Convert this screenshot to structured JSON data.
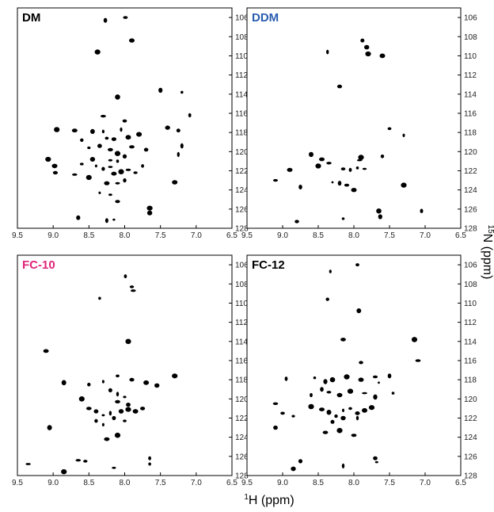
{
  "figure": {
    "xlabel_sup": "1",
    "xlabel_main": "H (ppm)",
    "ylabel_sup": "15",
    "ylabel_main": "N (ppm)"
  },
  "chart_data": [
    {
      "type": "scatter",
      "title": "DM",
      "title_color": "#000000",
      "xlim": [
        9.5,
        6.5
      ],
      "ylim": [
        128,
        105
      ],
      "x_ticks": [
        "9.5",
        "9.0",
        "8.5",
        "8.0",
        "7.5",
        "7.0",
        "6.5"
      ],
      "y_ticks": [
        "106",
        "108",
        "110",
        "112",
        "114",
        "116",
        "118",
        "120",
        "122",
        "124",
        "126",
        "128"
      ],
      "peaks": [
        [
          8.27,
          106.3
        ],
        [
          7.99,
          106.0
        ],
        [
          7.9,
          108.4
        ],
        [
          8.38,
          109.6
        ],
        [
          8.1,
          114.3
        ],
        [
          7.5,
          113.6
        ],
        [
          7.2,
          113.8
        ],
        [
          7.09,
          116.2
        ],
        [
          8.0,
          116.8
        ],
        [
          8.3,
          116.3
        ],
        [
          8.95,
          117.7
        ],
        [
          8.7,
          117.8
        ],
        [
          8.45,
          117.9
        ],
        [
          8.6,
          118.8
        ],
        [
          8.3,
          117.9
        ],
        [
          8.25,
          118.6
        ],
        [
          8.15,
          118.7
        ],
        [
          7.95,
          118.5
        ],
        [
          7.8,
          118.2
        ],
        [
          7.4,
          117.5
        ],
        [
          7.25,
          117.8
        ],
        [
          8.05,
          117.7
        ],
        [
          8.5,
          119.6
        ],
        [
          8.35,
          119.4
        ],
        [
          8.2,
          119.8
        ],
        [
          8.1,
          120.2
        ],
        [
          7.9,
          119.5
        ],
        [
          7.7,
          119.8
        ],
        [
          7.2,
          119.4
        ],
        [
          7.25,
          120.3
        ],
        [
          8.0,
          120.5
        ],
        [
          8.45,
          120.8
        ],
        [
          9.07,
          120.8
        ],
        [
          8.98,
          121.5
        ],
        [
          8.97,
          122.2
        ],
        [
          8.6,
          121.3
        ],
        [
          8.4,
          121.5
        ],
        [
          8.3,
          121.8
        ],
        [
          8.2,
          121.6
        ],
        [
          8.15,
          122.3
        ],
        [
          8.05,
          122.1
        ],
        [
          7.95,
          121.9
        ],
        [
          7.85,
          122.2
        ],
        [
          7.75,
          121.5
        ],
        [
          8.1,
          121.0
        ],
        [
          8.2,
          120.9
        ],
        [
          8.7,
          122.4
        ],
        [
          8.5,
          122.7
        ],
        [
          8.25,
          123.3
        ],
        [
          8.1,
          123.3
        ],
        [
          8.0,
          123.0
        ],
        [
          8.35,
          124.3
        ],
        [
          8.2,
          124.5
        ],
        [
          8.1,
          125.2
        ],
        [
          7.3,
          123.2
        ],
        [
          7.65,
          125.9
        ],
        [
          7.65,
          126.4
        ],
        [
          8.65,
          126.9
        ],
        [
          8.15,
          127.1
        ],
        [
          8.25,
          127.2
        ]
      ]
    },
    {
      "type": "scatter",
      "title": "DDM",
      "title_color": "#2a5db0",
      "xlim": [
        9.5,
        6.5
      ],
      "ylim": [
        128,
        105
      ],
      "x_ticks": [
        "9.5",
        "9.0",
        "8.5",
        "8.0",
        "7.5",
        "7.0",
        "6.5"
      ],
      "y_ticks": [
        "106",
        "108",
        "110",
        "112",
        "114",
        "116",
        "118",
        "120",
        "122",
        "124",
        "126",
        "128"
      ],
      "peaks": [
        [
          8.37,
          109.6
        ],
        [
          7.88,
          108.4
        ],
        [
          7.82,
          109.1
        ],
        [
          7.8,
          109.8
        ],
        [
          7.6,
          110.0
        ],
        [
          8.2,
          113.2
        ],
        [
          7.5,
          117.6
        ],
        [
          7.3,
          118.3
        ],
        [
          7.6,
          120.5
        ],
        [
          8.6,
          120.3
        ],
        [
          8.45,
          120.8
        ],
        [
          7.9,
          120.6
        ],
        [
          8.35,
          121.2
        ],
        [
          8.15,
          121.8
        ],
        [
          8.05,
          121.9
        ],
        [
          7.95,
          121.7
        ],
        [
          7.85,
          121.8
        ],
        [
          7.92,
          120.9
        ],
        [
          8.5,
          121.5
        ],
        [
          8.9,
          121.9
        ],
        [
          9.1,
          123.0
        ],
        [
          8.75,
          123.7
        ],
        [
          8.3,
          123.2
        ],
        [
          8.2,
          123.3
        ],
        [
          8.1,
          123.5
        ],
        [
          8.0,
          124.0
        ],
        [
          7.3,
          123.5
        ],
        [
          7.65,
          126.2
        ],
        [
          7.63,
          126.8
        ],
        [
          8.15,
          127.0
        ],
        [
          7.05,
          126.2
        ],
        [
          8.8,
          127.3
        ]
      ]
    },
    {
      "type": "scatter",
      "title": "FC-10",
      "title_color": "#e0257a",
      "xlim": [
        9.5,
        6.5
      ],
      "ylim": [
        128,
        105
      ],
      "x_ticks": [
        "9.5",
        "9.0",
        "8.5",
        "8.0",
        "7.5",
        "7.0",
        "6.5"
      ],
      "y_ticks": [
        "106",
        "108",
        "110",
        "112",
        "114",
        "116",
        "118",
        "120",
        "122",
        "124",
        "126",
        "128"
      ],
      "peaks": [
        [
          8.35,
          109.5
        ],
        [
          7.99,
          107.2
        ],
        [
          7.9,
          108.3
        ],
        [
          7.88,
          108.7
        ],
        [
          7.95,
          114.0
        ],
        [
          9.1,
          115.0
        ],
        [
          8.85,
          118.3
        ],
        [
          8.5,
          118.5
        ],
        [
          8.3,
          118.2
        ],
        [
          8.1,
          117.6
        ],
        [
          7.9,
          118.0
        ],
        [
          7.7,
          118.3
        ],
        [
          7.3,
          117.6
        ],
        [
          7.55,
          118.6
        ],
        [
          8.2,
          119.1
        ],
        [
          8.1,
          119.5
        ],
        [
          8.0,
          119.8
        ],
        [
          7.95,
          120.6
        ],
        [
          8.1,
          120.3
        ],
        [
          8.6,
          120.0
        ],
        [
          8.5,
          121.0
        ],
        [
          8.4,
          121.3
        ],
        [
          8.3,
          121.7
        ],
        [
          8.2,
          121.5
        ],
        [
          8.15,
          122.0
        ],
        [
          8.05,
          121.3
        ],
        [
          7.95,
          121.1
        ],
        [
          7.85,
          121.3
        ],
        [
          7.75,
          121.0
        ],
        [
          8.0,
          122.3
        ],
        [
          8.3,
          122.7
        ],
        [
          8.4,
          122.3
        ],
        [
          9.05,
          123.0
        ],
        [
          8.25,
          124.2
        ],
        [
          8.1,
          123.8
        ],
        [
          8.65,
          126.4
        ],
        [
          8.55,
          126.5
        ],
        [
          7.65,
          126.2
        ],
        [
          7.65,
          126.8
        ],
        [
          8.15,
          127.2
        ],
        [
          9.35,
          126.8
        ],
        [
          8.85,
          127.6
        ]
      ]
    },
    {
      "type": "scatter",
      "title": "FC-12",
      "title_color": "#000000",
      "xlim": [
        9.5,
        6.5
      ],
      "ylim": [
        128,
        105
      ],
      "x_ticks": [
        "9.5",
        "9.0",
        "8.5",
        "8.0",
        "7.5",
        "7.0",
        "6.5"
      ],
      "y_ticks": [
        "106",
        "108",
        "110",
        "112",
        "114",
        "116",
        "118",
        "120",
        "122",
        "124",
        "126",
        "128"
      ],
      "peaks": [
        [
          7.95,
          106.0
        ],
        [
          8.33,
          106.7
        ],
        [
          8.37,
          109.6
        ],
        [
          7.93,
          110.8
        ],
        [
          8.15,
          113.8
        ],
        [
          7.15,
          113.8
        ],
        [
          7.1,
          116.0
        ],
        [
          7.9,
          116.2
        ],
        [
          8.95,
          117.9
        ],
        [
          8.55,
          117.8
        ],
        [
          8.4,
          118.2
        ],
        [
          8.3,
          118.0
        ],
        [
          8.1,
          117.7
        ],
        [
          7.9,
          118.0
        ],
        [
          7.7,
          117.7
        ],
        [
          7.5,
          117.6
        ],
        [
          7.65,
          118.3
        ],
        [
          8.45,
          119.0
        ],
        [
          8.35,
          119.3
        ],
        [
          8.2,
          119.6
        ],
        [
          8.05,
          119.2
        ],
        [
          7.85,
          119.4
        ],
        [
          7.7,
          119.8
        ],
        [
          7.45,
          119.4
        ],
        [
          8.6,
          119.6
        ],
        [
          9.0,
          121.5
        ],
        [
          9.1,
          120.5
        ],
        [
          8.6,
          120.8
        ],
        [
          8.45,
          121.1
        ],
        [
          8.35,
          121.4
        ],
        [
          8.25,
          121.8
        ],
        [
          8.15,
          121.2
        ],
        [
          8.05,
          121.0
        ],
        [
          7.95,
          121.5
        ],
        [
          7.85,
          121.2
        ],
        [
          7.75,
          120.9
        ],
        [
          8.15,
          122.0
        ],
        [
          8.3,
          122.4
        ],
        [
          7.95,
          122.0
        ],
        [
          8.85,
          121.8
        ],
        [
          9.1,
          123.0
        ],
        [
          8.4,
          123.5
        ],
        [
          8.2,
          123.3
        ],
        [
          8.0,
          123.8
        ],
        [
          7.7,
          126.2
        ],
        [
          7.68,
          126.6
        ],
        [
          8.15,
          127.0
        ],
        [
          8.75,
          126.5
        ],
        [
          8.85,
          127.3
        ]
      ]
    }
  ]
}
